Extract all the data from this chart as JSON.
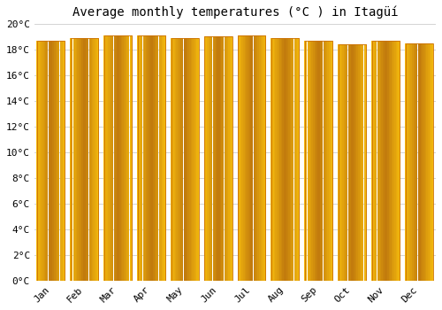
{
  "title": "Average monthly temperatures (°C ) in Itagüí",
  "months": [
    "Jan",
    "Feb",
    "Mar",
    "Apr",
    "May",
    "Jun",
    "Jul",
    "Aug",
    "Sep",
    "Oct",
    "Nov",
    "Dec"
  ],
  "values": [
    18.7,
    18.9,
    19.1,
    19.1,
    18.9,
    19.0,
    19.1,
    18.9,
    18.7,
    18.4,
    18.7,
    18.5
  ],
  "ylim": [
    0,
    20
  ],
  "yticks": [
    0,
    2,
    4,
    6,
    8,
    10,
    12,
    14,
    16,
    18,
    20
  ],
  "bar_color_center": "#FFD966",
  "bar_color_edge": "#E07800",
  "background_color": "#ffffff",
  "grid_color": "#cccccc",
  "title_fontsize": 10,
  "tick_fontsize": 8,
  "bar_width": 0.82
}
